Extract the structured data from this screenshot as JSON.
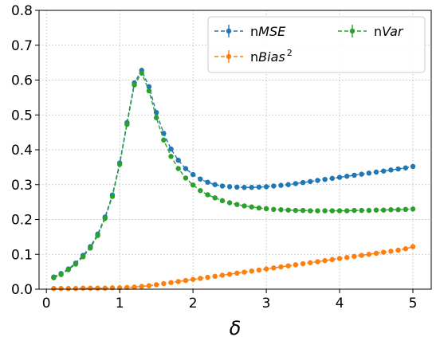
{
  "chart_data": {
    "type": "line",
    "xlabel": "δ",
    "ylabel": "",
    "title": "",
    "xlim": [
      -0.1,
      5.25
    ],
    "ylim": [
      0.0,
      0.8
    ],
    "xticks": [
      "0",
      "1",
      "2",
      "3",
      "4",
      "5"
    ],
    "yticks": [
      "0.0",
      "0.1",
      "0.2",
      "0.3",
      "0.4",
      "0.5",
      "0.6",
      "0.7",
      "0.8"
    ],
    "grid": true,
    "legend_position": "top-right",
    "legend_columns": 2,
    "x": [
      0.1,
      0.2,
      0.3,
      0.4,
      0.5,
      0.6,
      0.7,
      0.8,
      0.9,
      1.0,
      1.1,
      1.2,
      1.3,
      1.4,
      1.5,
      1.6,
      1.7,
      1.8,
      1.9,
      2.0,
      2.1,
      2.2,
      2.3,
      2.4,
      2.5,
      2.6,
      2.7,
      2.8,
      2.9,
      3.0,
      3.1,
      3.2,
      3.3,
      3.4,
      3.5,
      3.6,
      3.7,
      3.8,
      3.9,
      4.0,
      4.1,
      4.2,
      4.3,
      4.4,
      4.5,
      4.6,
      4.7,
      4.8,
      4.9,
      5.0
    ],
    "series": [
      {
        "name_prefix": "n",
        "name_main": "MSE",
        "name_sup": "",
        "color": "#1f77b4",
        "values": [
          0.035,
          0.045,
          0.058,
          0.075,
          0.097,
          0.122,
          0.158,
          0.207,
          0.27,
          0.362,
          0.478,
          0.592,
          0.628,
          0.581,
          0.507,
          0.447,
          0.402,
          0.37,
          0.346,
          0.329,
          0.316,
          0.307,
          0.3,
          0.296,
          0.294,
          0.293,
          0.292,
          0.292,
          0.293,
          0.294,
          0.296,
          0.298,
          0.3,
          0.303,
          0.306,
          0.309,
          0.312,
          0.315,
          0.318,
          0.321,
          0.324,
          0.327,
          0.33,
          0.333,
          0.336,
          0.339,
          0.342,
          0.345,
          0.348,
          0.352
        ]
      },
      {
        "name_prefix": "n",
        "name_main": "Bias",
        "name_sup": "2",
        "color": "#ff7f0e",
        "values": [
          0.002,
          0.002,
          0.002,
          0.002,
          0.003,
          0.003,
          0.003,
          0.003,
          0.004,
          0.004,
          0.005,
          0.006,
          0.008,
          0.01,
          0.013,
          0.016,
          0.019,
          0.022,
          0.025,
          0.028,
          0.031,
          0.034,
          0.037,
          0.04,
          0.043,
          0.046,
          0.049,
          0.052,
          0.055,
          0.058,
          0.061,
          0.064,
          0.067,
          0.07,
          0.073,
          0.076,
          0.079,
          0.082,
          0.085,
          0.088,
          0.091,
          0.094,
          0.097,
          0.1,
          0.103,
          0.106,
          0.109,
          0.112,
          0.116,
          0.122
        ]
      },
      {
        "name_prefix": "n",
        "name_main": "Var",
        "name_sup": "",
        "color": "#2ca02c",
        "values": [
          0.033,
          0.042,
          0.056,
          0.072,
          0.093,
          0.118,
          0.154,
          0.203,
          0.266,
          0.358,
          0.473,
          0.586,
          0.62,
          0.569,
          0.492,
          0.428,
          0.381,
          0.346,
          0.319,
          0.299,
          0.283,
          0.271,
          0.262,
          0.254,
          0.248,
          0.243,
          0.239,
          0.236,
          0.233,
          0.231,
          0.229,
          0.228,
          0.227,
          0.226,
          0.226,
          0.225,
          0.225,
          0.225,
          0.225,
          0.225,
          0.225,
          0.226,
          0.226,
          0.226,
          0.227,
          0.227,
          0.228,
          0.228,
          0.229,
          0.23
        ]
      }
    ]
  }
}
